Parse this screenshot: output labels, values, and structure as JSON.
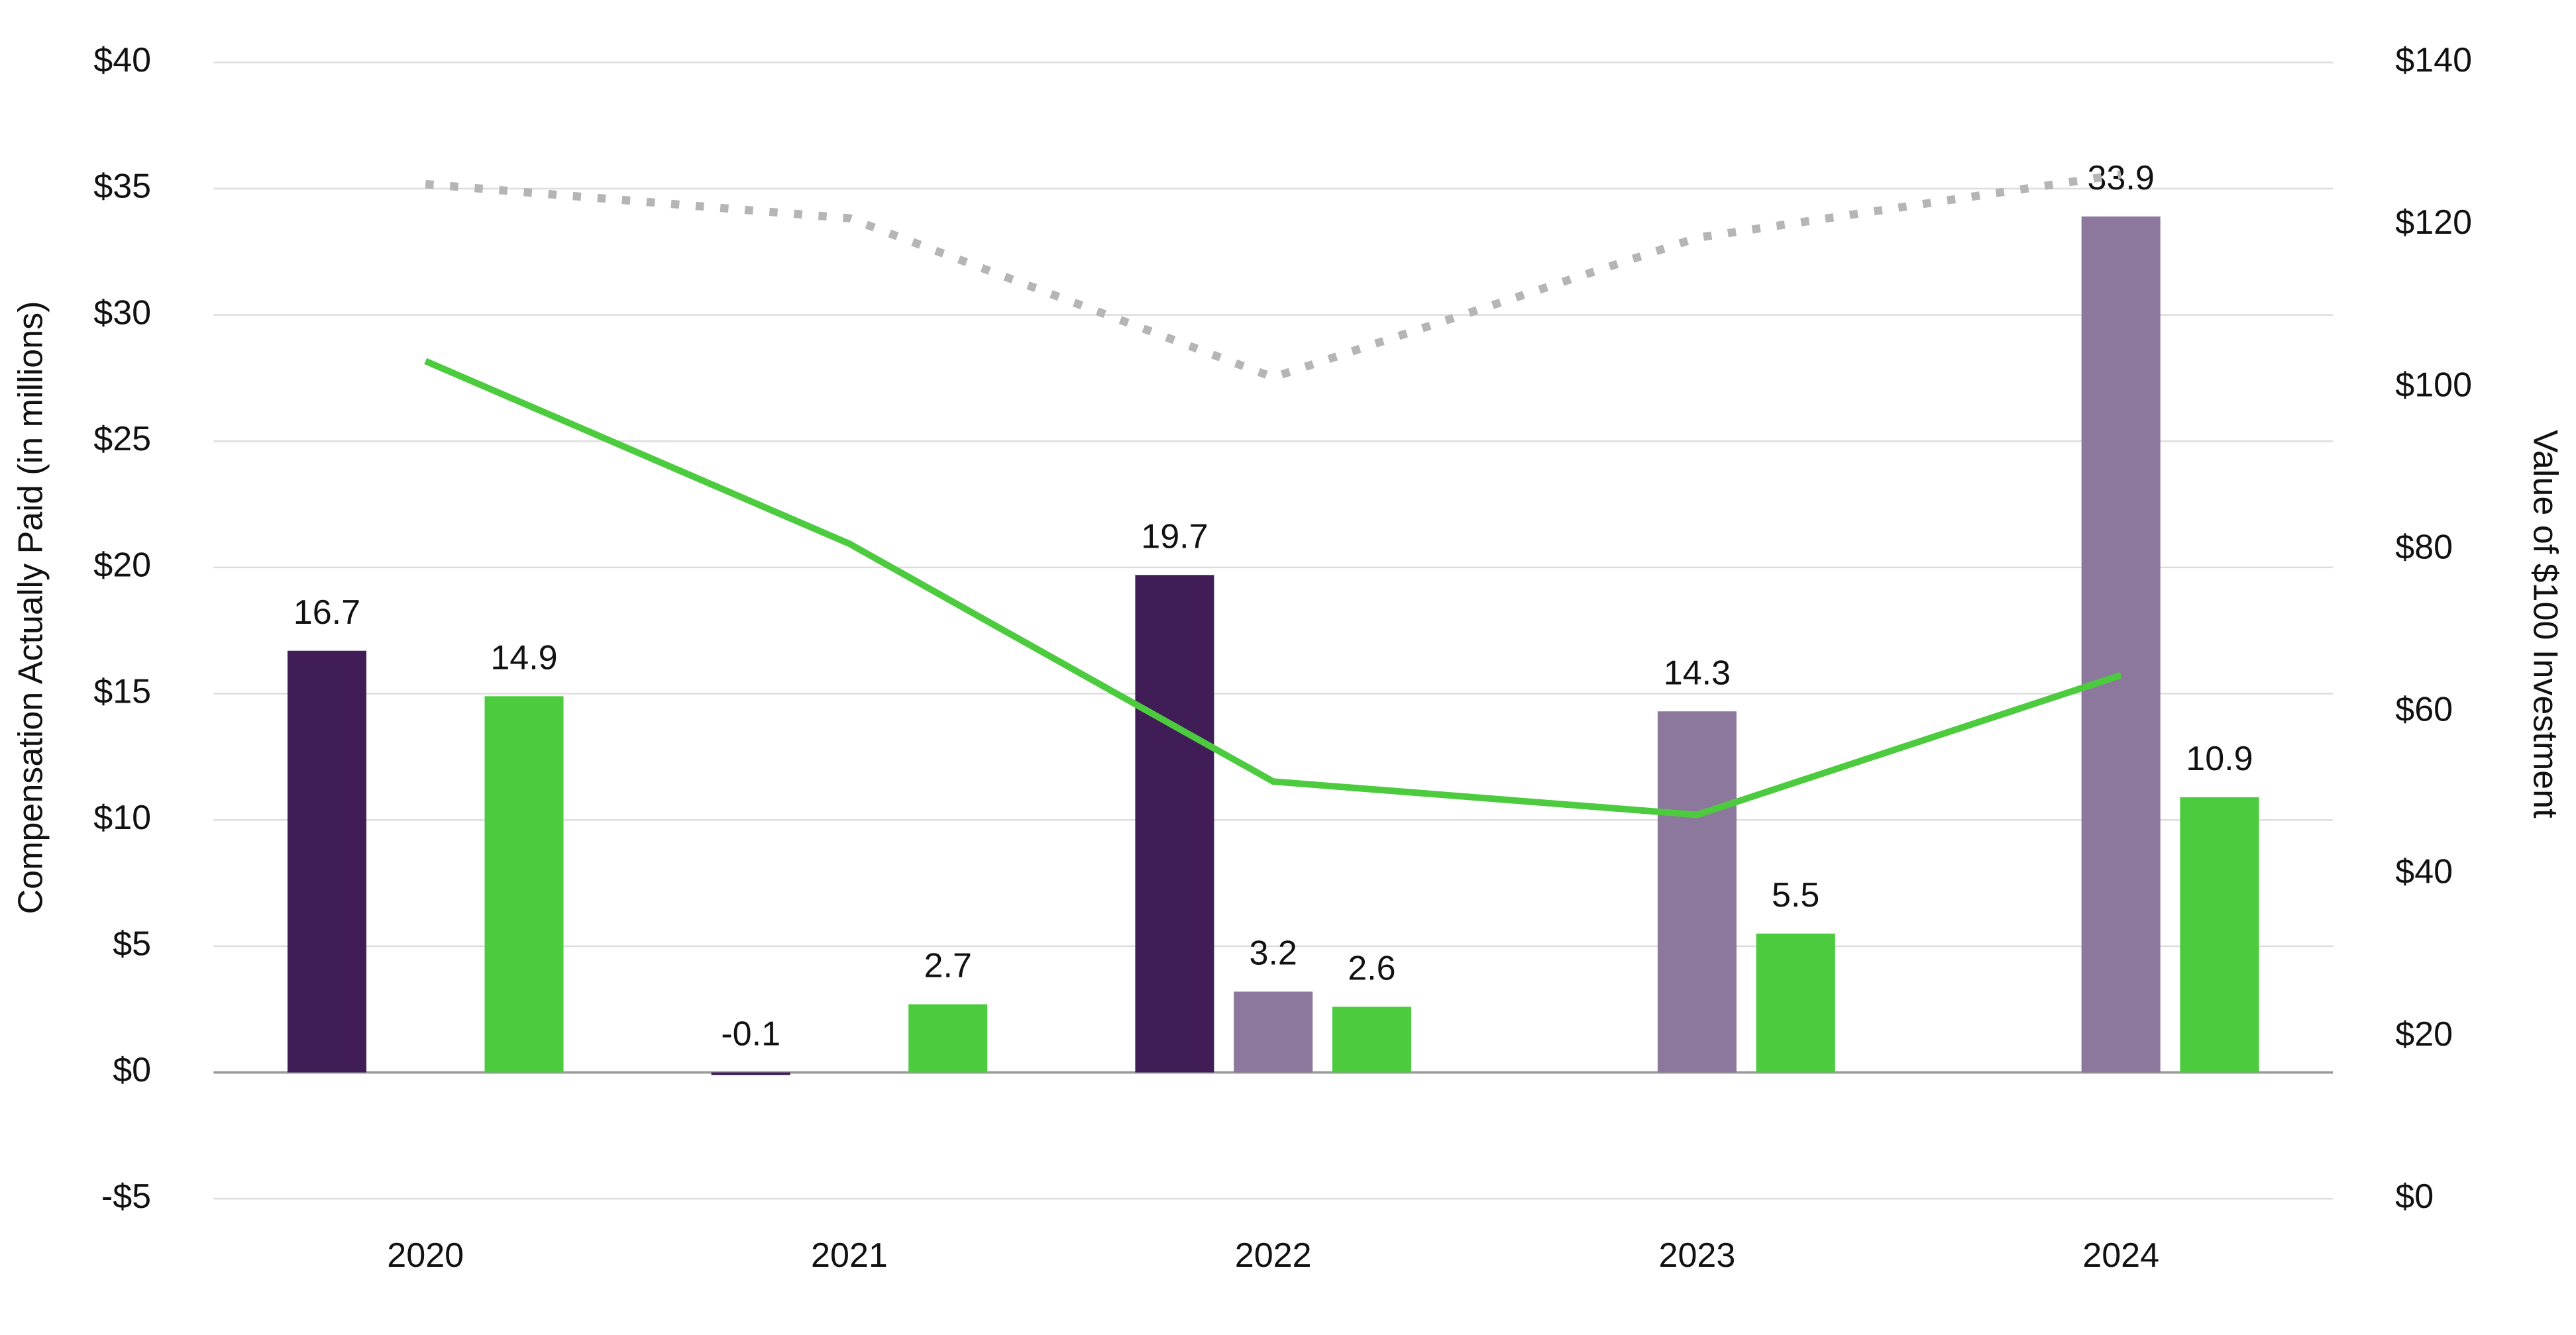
{
  "chart_data": {
    "type": "bar",
    "categories": [
      "2020",
      "2021",
      "2022",
      "2023",
      "2024"
    ],
    "series": [
      {
        "color": "#411d58",
        "values": [
          16.7,
          -0.1,
          19.7,
          null,
          null
        ]
      },
      {
        "color": "#8c789d",
        "values": [
          null,
          null,
          3.2,
          14.3,
          33.9
        ]
      },
      {
        "color": "#4ccb3e",
        "values": [
          14.9,
          2.7,
          2.6,
          5.5,
          10.9
        ]
      },
      {
        "type": "line",
        "axis": "y2",
        "color": "#4ccb3e",
        "values": [
          103.2,
          80.7,
          51.4,
          47.3,
          64.5
        ]
      },
      {
        "type": "line",
        "axis": "y2",
        "color": "#b5b5b5",
        "dash": true,
        "values": [
          125,
          120.8,
          101.2,
          118.4,
          126.2
        ]
      }
    ],
    "ylabel": "Compensation Actually Paid (in millions)",
    "y2label": "Value of $100 Investment",
    "ylim": [
      -5,
      40
    ],
    "yticks": [
      {
        "value": -5,
        "label": "-$5"
      },
      {
        "value": 0,
        "label": "$0"
      },
      {
        "value": 5,
        "label": "$5"
      },
      {
        "value": 10,
        "label": "$10"
      },
      {
        "value": 15,
        "label": "$15"
      },
      {
        "value": 20,
        "label": "$20"
      },
      {
        "value": 25,
        "label": "$25"
      },
      {
        "value": 30,
        "label": "$30"
      },
      {
        "value": 35,
        "label": "$35"
      },
      {
        "value": 40,
        "label": "$40"
      }
    ],
    "y2lim": [
      0,
      140
    ],
    "y2ticks": [
      {
        "value": 0,
        "label": "$0"
      },
      {
        "value": 20,
        "label": "$20"
      },
      {
        "value": 40,
        "label": "$40"
      },
      {
        "value": 60,
        "label": "$60"
      },
      {
        "value": 80,
        "label": "$80"
      },
      {
        "value": 100,
        "label": "$100"
      },
      {
        "value": 120,
        "label": "$120"
      },
      {
        "value": 140,
        "label": "$140"
      }
    ],
    "grid": true
  }
}
